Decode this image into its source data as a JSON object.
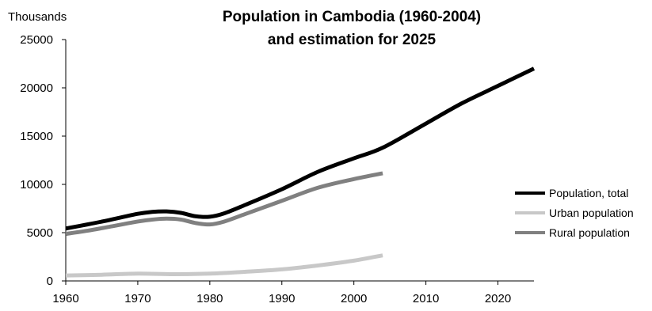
{
  "chart_data": {
    "type": "line",
    "title_lines": [
      "Population in Cambodia (1960-2004)",
      "and estimation for 2025"
    ],
    "ylabel": "Thousands",
    "xlabel": "",
    "xlim": [
      1960,
      2025
    ],
    "ylim": [
      0,
      25000
    ],
    "x_ticks": [
      1960,
      1970,
      1980,
      1990,
      2000,
      2010,
      2020
    ],
    "y_ticks": [
      0,
      5000,
      10000,
      15000,
      20000,
      25000
    ],
    "grid": false,
    "legend_position": "right",
    "series": [
      {
        "name": "Population, total",
        "color": "#000000",
        "points": [
          [
            1960,
            5430
          ],
          [
            1963,
            5850
          ],
          [
            1966,
            6300
          ],
          [
            1970,
            6950
          ],
          [
            1972,
            7150
          ],
          [
            1974,
            7200
          ],
          [
            1976,
            7050
          ],
          [
            1978,
            6700
          ],
          [
            1980,
            6650
          ],
          [
            1982,
            7000
          ],
          [
            1985,
            7900
          ],
          [
            1990,
            9500
          ],
          [
            1995,
            11300
          ],
          [
            2000,
            12700
          ],
          [
            2004,
            13800
          ],
          [
            2010,
            16300
          ],
          [
            2015,
            18400
          ],
          [
            2020,
            20200
          ],
          [
            2025,
            22000
          ]
        ]
      },
      {
        "name": "Urban population",
        "color": "#c8c8c8",
        "points": [
          [
            1960,
            560
          ],
          [
            1965,
            640
          ],
          [
            1970,
            760
          ],
          [
            1975,
            700
          ],
          [
            1980,
            760
          ],
          [
            1985,
            950
          ],
          [
            1990,
            1200
          ],
          [
            1995,
            1600
          ],
          [
            2000,
            2100
          ],
          [
            2004,
            2650
          ]
        ]
      },
      {
        "name": "Rural population",
        "color": "#808080",
        "points": [
          [
            1960,
            4870
          ],
          [
            1963,
            5200
          ],
          [
            1966,
            5600
          ],
          [
            1970,
            6150
          ],
          [
            1972,
            6350
          ],
          [
            1974,
            6450
          ],
          [
            1976,
            6350
          ],
          [
            1978,
            6000
          ],
          [
            1980,
            5850
          ],
          [
            1982,
            6150
          ],
          [
            1985,
            6950
          ],
          [
            1990,
            8300
          ],
          [
            1995,
            9650
          ],
          [
            2000,
            10550
          ],
          [
            2004,
            11150
          ]
        ]
      }
    ]
  }
}
